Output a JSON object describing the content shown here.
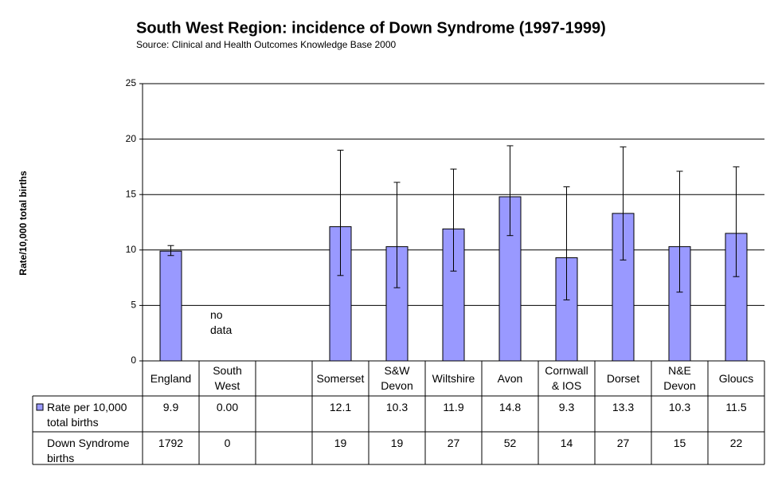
{
  "chart_data": {
    "type": "bar",
    "title": "South West Region:  incidence of Down Syndrome  (1997-1999)",
    "subtitle": "Source: Clinical and Health Outcomes Knowledge Base 2000",
    "y_label": "Rate/10,000 total births",
    "annotation": "no data",
    "categories": [
      "England",
      "South\nWest",
      null,
      "Somerset",
      "S&W\nDevon",
      "Wiltshire",
      "Avon",
      "Cornwall\n& IOS",
      "Dorset",
      "N&E\nDevon",
      "Gloucs"
    ],
    "series": [
      {
        "name": "Rate per 10,000 total births",
        "color": "#9999ff",
        "values": [
          9.9,
          0,
          null,
          12.1,
          10.3,
          11.9,
          14.8,
          9.3,
          13.3,
          10.3,
          11.5
        ],
        "value_labels": [
          "9.9",
          "0.00",
          null,
          "12.1",
          "10.3",
          "11.9",
          "14.8",
          "9.3",
          "13.3",
          "10.3",
          "11.5"
        ],
        "ci_low": [
          9.5,
          null,
          null,
          7.7,
          6.6,
          8.1,
          11.3,
          5.5,
          9.1,
          6.2,
          7.6
        ],
        "ci_high": [
          10.4,
          null,
          null,
          19.0,
          16.1,
          17.3,
          19.4,
          15.7,
          19.3,
          17.1,
          17.5
        ]
      }
    ],
    "table_rows": [
      {
        "name": "Down Syndrome births",
        "values": [
          1792,
          0,
          null,
          19,
          19,
          27,
          52,
          14,
          27,
          15,
          22
        ]
      }
    ],
    "ylim": [
      0,
      25
    ],
    "yticks": [
      0,
      5,
      10,
      15,
      20,
      25
    ],
    "grid": true
  }
}
